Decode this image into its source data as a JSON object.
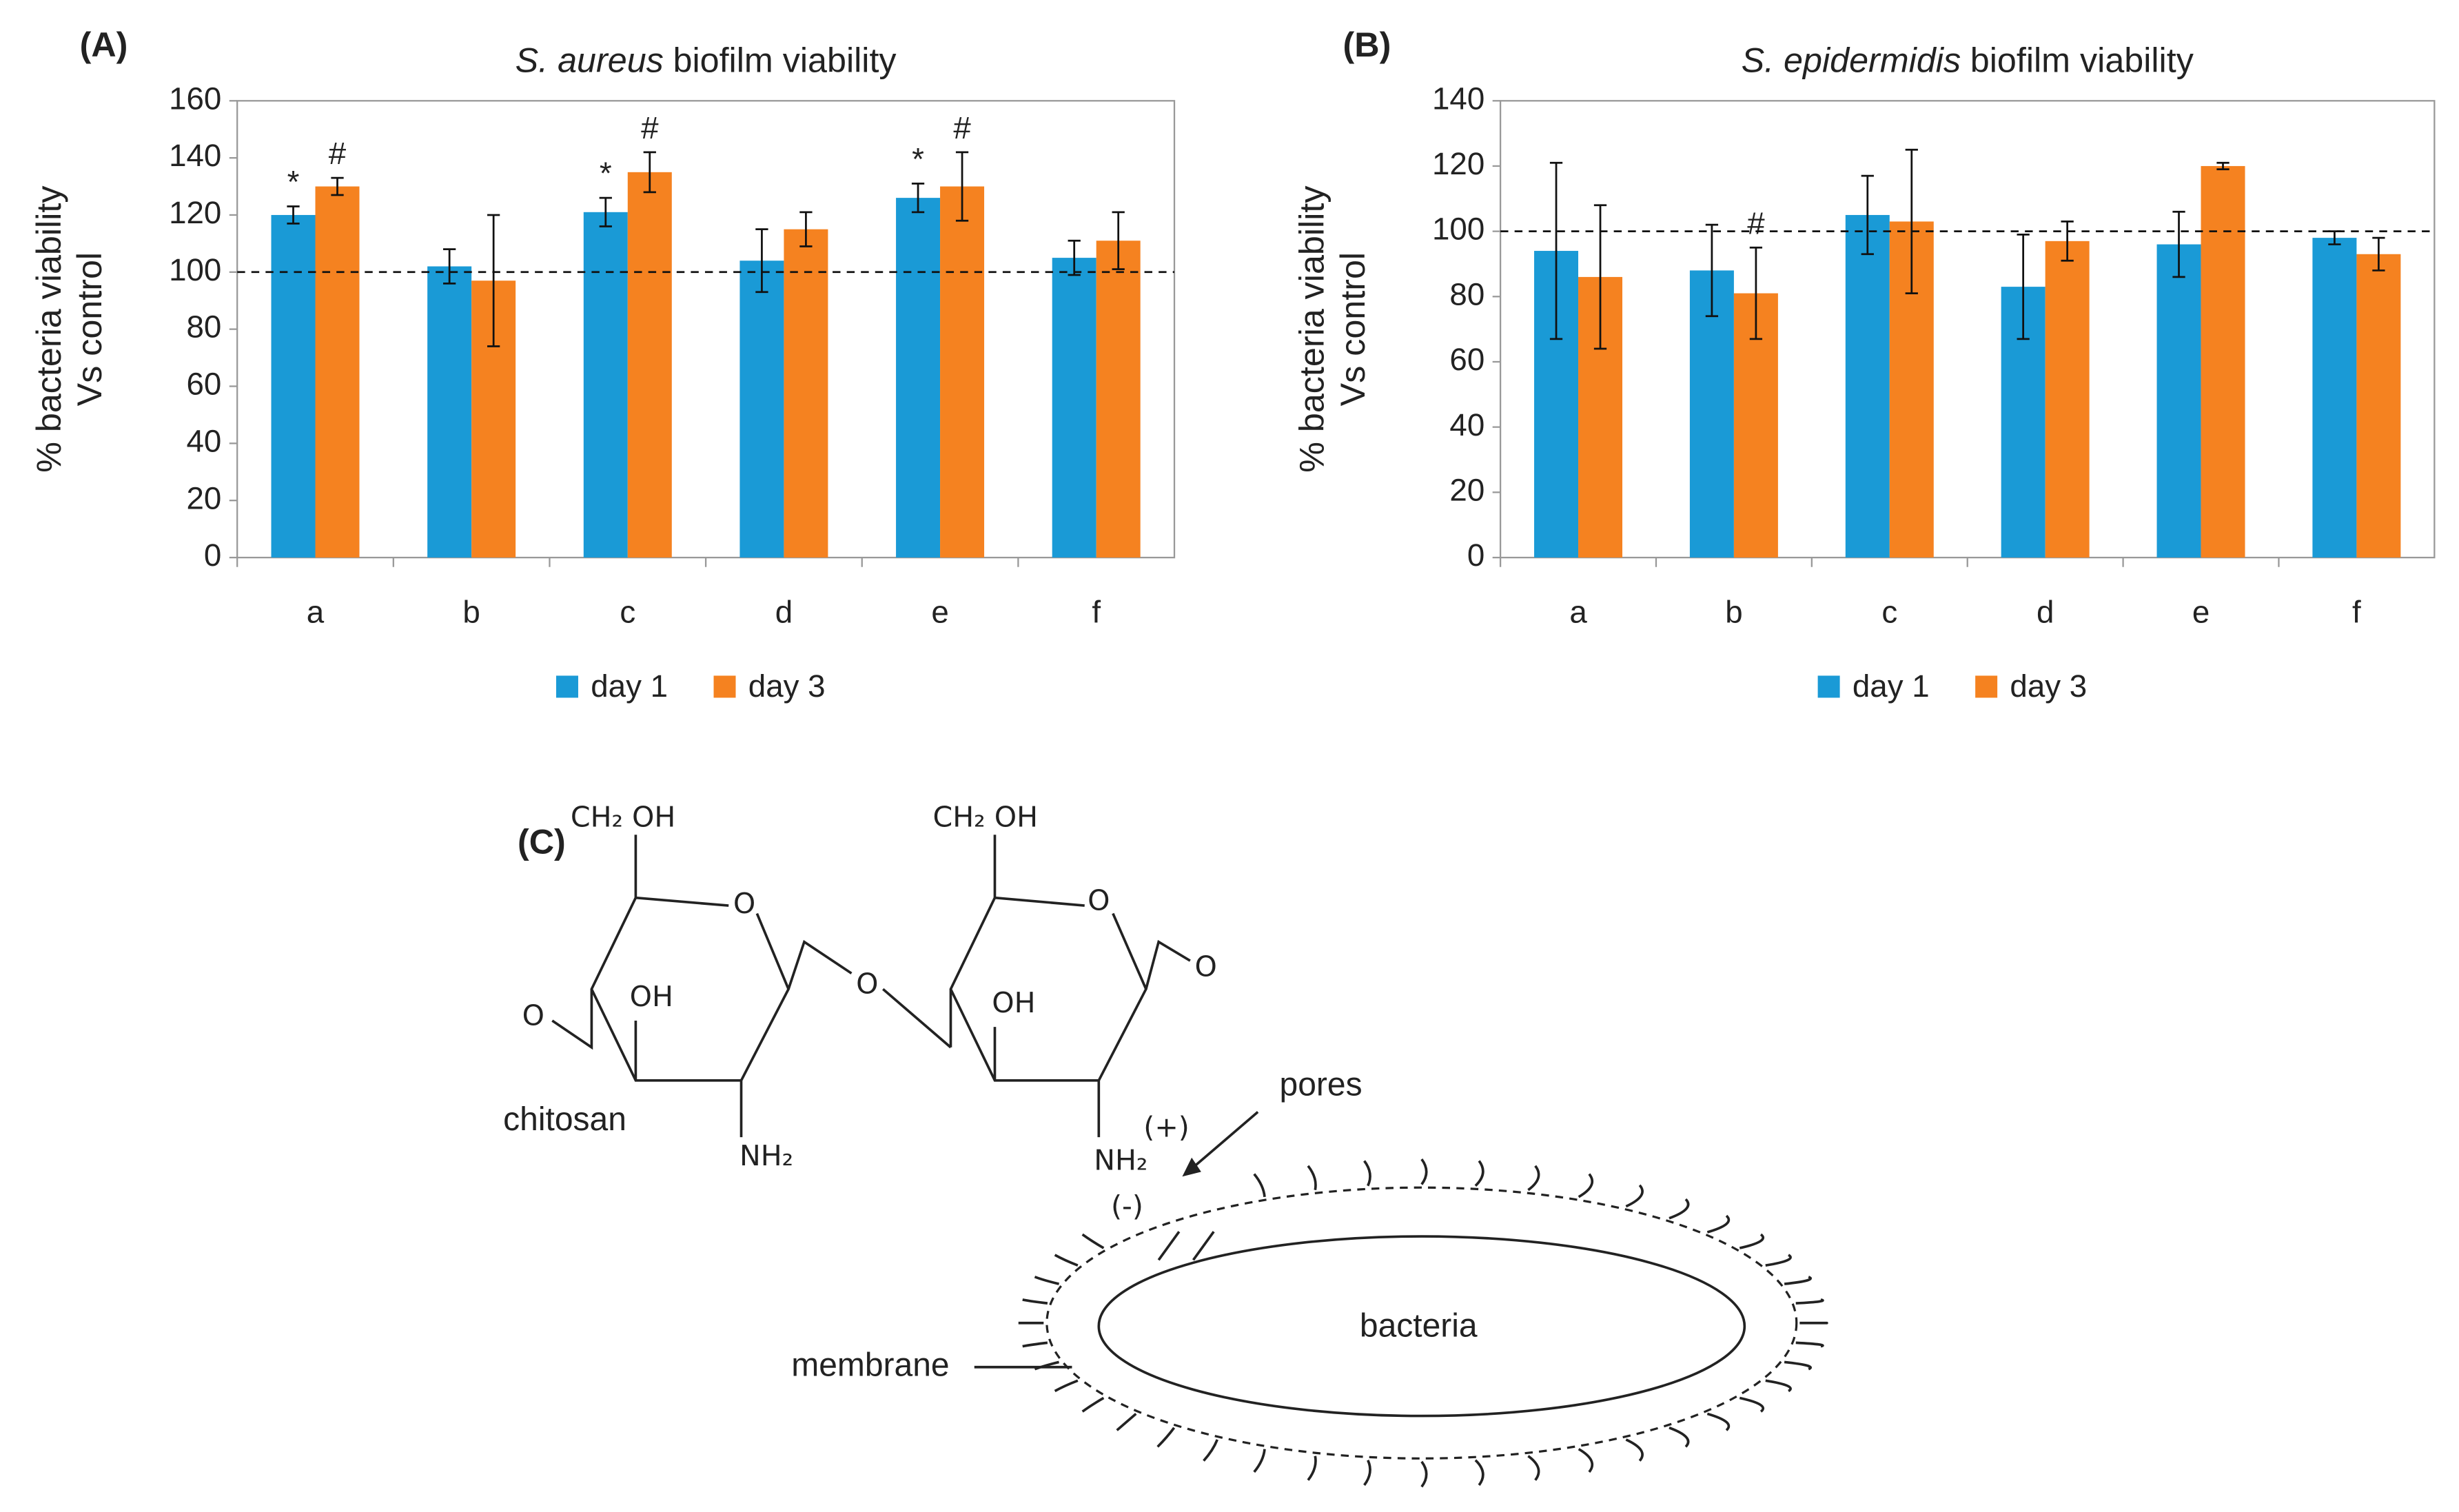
{
  "chart_data": [
    {
      "type": "bar",
      "panel_label": "(A)",
      "title": {
        "italic": "S. aureus",
        "rest": "biofilm viability"
      },
      "ylabel": [
        "% bacteria viability",
        "Vs control"
      ],
      "categories": [
        "a",
        "b",
        "c",
        "d",
        "e",
        "f"
      ],
      "series": [
        {
          "name": "day 1",
          "color": "#1a9ad6",
          "values": [
            120,
            102,
            121,
            104,
            126,
            105
          ],
          "errors": [
            3,
            6,
            5,
            11,
            5,
            6
          ],
          "markers": [
            "*",
            null,
            "*",
            null,
            "*",
            null
          ]
        },
        {
          "name": "day 3",
          "color": "#f58220",
          "values": [
            130,
            97,
            135,
            115,
            130,
            111
          ],
          "errors": [
            3,
            23,
            7,
            6,
            12,
            10
          ],
          "markers": [
            "#",
            null,
            "#",
            null,
            "#",
            null
          ]
        }
      ],
      "ylim": [
        0,
        160
      ],
      "yticks": [
        0,
        20,
        40,
        60,
        80,
        100,
        120,
        140,
        160
      ],
      "reference_line": 100,
      "legend": "bottom"
    },
    {
      "type": "bar",
      "panel_label": "(B)",
      "title": {
        "italic": "S. epidermidis",
        "rest": "biofilm viability"
      },
      "ylabel": [
        "% bacteria viability",
        "Vs control"
      ],
      "categories": [
        "a",
        "b",
        "c",
        "d",
        "e",
        "f"
      ],
      "series": [
        {
          "name": "day 1",
          "color": "#1a9ad6",
          "values": [
            94,
            88,
            105,
            83,
            96,
            98
          ],
          "errors": [
            27,
            14,
            12,
            16,
            10,
            2
          ],
          "markers": [
            null,
            null,
            null,
            null,
            null,
            null
          ]
        },
        {
          "name": "day 3",
          "color": "#f58220",
          "values": [
            86,
            81,
            103,
            97,
            120,
            93
          ],
          "errors": [
            22,
            14,
            22,
            6,
            1,
            5
          ],
          "markers": [
            null,
            "#",
            null,
            null,
            null,
            null
          ]
        }
      ],
      "ylim": [
        0,
        140
      ],
      "yticks": [
        0,
        20,
        40,
        60,
        80,
        100,
        120,
        140
      ],
      "reference_line": 100,
      "legend": "bottom"
    }
  ],
  "diagram": {
    "panel_label": "(C)",
    "labels": [
      "CH₂ OH",
      "CH₂ OH",
      "O",
      "O",
      "O",
      "O",
      "O",
      "OH",
      "OH",
      "NH₂",
      "NH₂",
      "chitosan",
      "(+)",
      "(-)",
      "pores",
      "membrane",
      "bacteria"
    ]
  }
}
